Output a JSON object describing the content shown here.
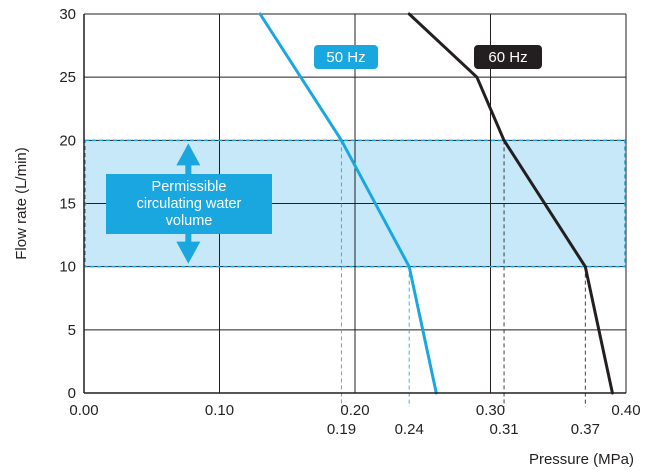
{
  "chart_data": {
    "type": "line",
    "xlabel": "Pressure (MPa)",
    "ylabel": "Flow rate (L/min)",
    "xlim": [
      0,
      0.4
    ],
    "ylim": [
      0,
      30
    ],
    "x_ticks": [
      "0.00",
      "0.10",
      "0.20",
      "0.30",
      "0.40"
    ],
    "y_ticks": [
      "0",
      "5",
      "10",
      "15",
      "20",
      "25",
      "30"
    ],
    "grid": true,
    "series": [
      {
        "name": "50 Hz",
        "color": "#1aa7e0",
        "points": [
          [
            0.13,
            30
          ],
          [
            0.19,
            20
          ],
          [
            0.24,
            10
          ],
          [
            0.26,
            0
          ]
        ]
      },
      {
        "name": "60 Hz",
        "color": "#231f20",
        "points": [
          [
            0.24,
            30
          ],
          [
            0.29,
            25
          ],
          [
            0.31,
            20
          ],
          [
            0.37,
            10
          ],
          [
            0.39,
            0
          ]
        ]
      }
    ],
    "band": {
      "label": "Permissible circulating water volume",
      "label_lines": [
        "Permissible",
        "circulating water",
        "volume"
      ],
      "y_from": 10,
      "y_to": 20,
      "fill": "#c6e8f8",
      "border": "#1aa7e0"
    },
    "annotations": [
      {
        "series": "50 Hz",
        "x": 0.19,
        "y": 20,
        "label": "0.19"
      },
      {
        "series": "50 Hz",
        "x": 0.24,
        "y": 10,
        "label": "0.24"
      },
      {
        "series": "60 Hz",
        "x": 0.31,
        "y": 20,
        "label": "0.31"
      },
      {
        "series": "60 Hz",
        "x": 0.37,
        "y": 10,
        "label": "0.37"
      }
    ]
  }
}
